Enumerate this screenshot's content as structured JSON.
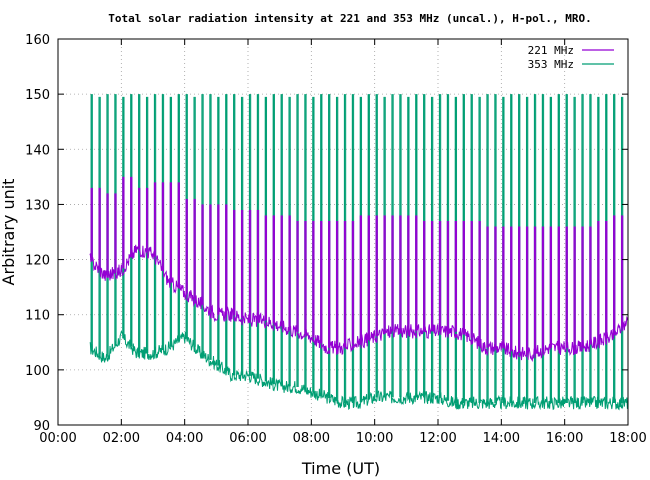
{
  "chart_data": {
    "type": "line",
    "title": "Total solar radiation intensity at 221 and 353 MHz (uncal.), H-pol., MRO.",
    "xlabel": "Time (UT)",
    "ylabel": "Arbitrary unit",
    "xlim": [
      0,
      18
    ],
    "ylim": [
      90,
      160
    ],
    "x_ticks": [
      0,
      2,
      4,
      6,
      8,
      10,
      12,
      14,
      16,
      18
    ],
    "x_tick_labels": [
      "00:00",
      "02:00",
      "04:00",
      "06:00",
      "08:00",
      "10:00",
      "12:00",
      "14:00",
      "16:00",
      "18:00"
    ],
    "y_ticks": [
      90,
      100,
      110,
      120,
      130,
      140,
      150,
      160
    ],
    "y_tick_labels": [
      "90",
      "100",
      "110",
      "120",
      "130",
      "140",
      "150",
      "160"
    ],
    "grid": true,
    "legend_position": "top-right",
    "series": [
      {
        "name": "221 MHz",
        "color": "#9400d3",
        "x": [
          1.0,
          1.5,
          2.0,
          2.5,
          3.0,
          3.5,
          4.0,
          4.5,
          5.0,
          5.5,
          6.0,
          6.5,
          7.0,
          7.5,
          8.0,
          8.5,
          9.0,
          9.5,
          10.0,
          10.5,
          11.0,
          11.5,
          12.0,
          12.5,
          13.0,
          13.5,
          14.0,
          14.5,
          15.0,
          15.5,
          16.0,
          16.5,
          17.0,
          17.5,
          18.0
        ],
        "y": [
          120,
          117,
          118,
          122,
          121,
          116,
          114,
          112,
          110,
          110,
          109,
          109,
          108,
          107,
          106,
          104,
          104,
          105,
          106,
          107,
          107,
          107,
          107,
          107,
          106,
          104,
          104,
          103,
          103,
          104,
          104,
          104,
          105,
          106,
          109
        ],
        "spike_peaks": [
          133,
          132,
          135,
          133,
          134,
          134,
          131,
          130,
          130,
          129,
          129,
          128,
          128,
          127,
          127,
          127,
          127,
          128,
          128,
          128,
          128,
          127,
          127,
          127,
          127,
          126,
          126,
          126,
          126,
          126,
          126,
          126,
          127,
          128
        ]
      },
      {
        "name": "353 MHz",
        "color": "#009e73",
        "x": [
          1.0,
          1.5,
          2.0,
          2.5,
          3.0,
          3.5,
          4.0,
          4.5,
          5.0,
          5.5,
          6.0,
          6.5,
          7.0,
          7.5,
          8.0,
          8.5,
          9.0,
          9.5,
          10.0,
          10.5,
          11.0,
          11.5,
          12.0,
          12.5,
          13.0,
          13.5,
          14.0,
          14.5,
          15.0,
          15.5,
          16.0,
          16.5,
          17.0,
          17.5,
          18.0
        ],
        "y": [
          104,
          102,
          106,
          103,
          103,
          104,
          106,
          103,
          101,
          99,
          99,
          98,
          97,
          97,
          96,
          95,
          94,
          94,
          95,
          95,
          95,
          95,
          95,
          94,
          94,
          94,
          94,
          94,
          94,
          94,
          94,
          94,
          94,
          94,
          94
        ],
        "spike_peak": 150
      }
    ]
  }
}
